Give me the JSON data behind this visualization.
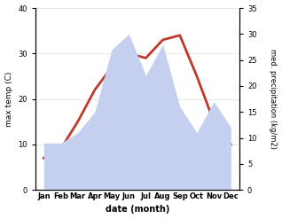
{
  "months": [
    "Jan",
    "Feb",
    "Mar",
    "Apr",
    "May",
    "Jun",
    "Jul",
    "Aug",
    "Sep",
    "Oct",
    "Nov",
    "Dec"
  ],
  "temperature": [
    7,
    9,
    15,
    22,
    27,
    30,
    29,
    33,
    34,
    25,
    15,
    10
  ],
  "precipitation": [
    9,
    9,
    11,
    15,
    27,
    30,
    22,
    28,
    16,
    11,
    17,
    12
  ],
  "temp_color": "#c0392b",
  "precip_color_fill": "#c5cff0",
  "precip_color_edge": "#a8b8e8",
  "ylabel_left": "max temp (C)",
  "ylabel_right": "med. precipitation (kg/m2)",
  "xlabel": "date (month)",
  "ylim_left": [
    0,
    40
  ],
  "ylim_right": [
    0,
    35
  ],
  "yticks_left": [
    0,
    10,
    20,
    30,
    40
  ],
  "yticks_right": [
    0,
    5,
    10,
    15,
    20,
    25,
    30,
    35
  ],
  "background_color": "#ffffff",
  "line_width": 2.0
}
